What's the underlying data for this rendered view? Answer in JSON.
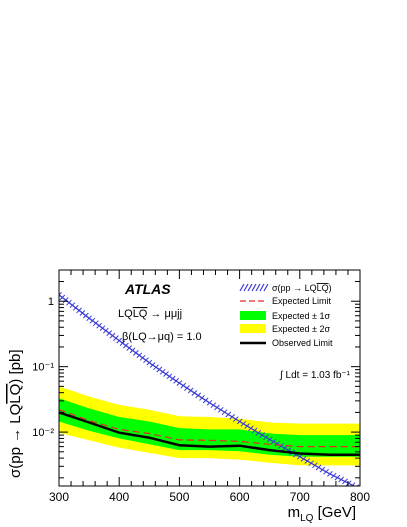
{
  "chart_data": {
    "type": "line",
    "title": "",
    "xlabel": "m_LQ [GeV]",
    "ylabel": "σ(pp → LQLQ) [pb]",
    "xlim": [
      300,
      800
    ],
    "ylim": [
      0.0015,
      3
    ],
    "yscale": "log",
    "x_ticks": [
      "300",
      "400",
      "500",
      "600",
      "700",
      "800"
    ],
    "y_ticks": [
      "1",
      "10⁻¹",
      "10⁻²"
    ],
    "annotations": {
      "experiment": "ATLAS",
      "process": "LQLQ → μμjj",
      "branching_ratio": "β(LQ→μq) = 1.0",
      "luminosity": "∫ Ldt = 1.03 fb⁻¹"
    },
    "legend": {
      "position": "top-right",
      "entries": [
        "σ(pp → LQLQ)",
        "Expected Limit",
        "Expected ± 1σ",
        "Expected ± 2σ",
        "Observed Limit"
      ]
    },
    "x": [
      300,
      350,
      400,
      450,
      500,
      550,
      600,
      650,
      700,
      750,
      800
    ],
    "series": [
      {
        "name": "σ(pp → LQLQ)",
        "style": "hatched-band",
        "color": "#3a3ad8",
        "values": [
          1.25,
          0.55,
          0.25,
          0.115,
          0.056,
          0.028,
          0.0145,
          0.0077,
          0.0042,
          0.0023,
          0.00135
        ]
      },
      {
        "name": "Expected Limit",
        "style": "dashed",
        "color": "#e8262a",
        "values": [
          0.022,
          0.015,
          0.011,
          0.0095,
          0.0076,
          0.0075,
          0.0072,
          0.0065,
          0.006,
          0.006,
          0.006
        ]
      },
      {
        "name": "Expected ± 1σ",
        "style": "band",
        "color": "#00ff00",
        "lower": [
          0.0145,
          0.0105,
          0.008,
          0.0065,
          0.0053,
          0.0053,
          0.0051,
          0.0045,
          0.0042,
          0.0042,
          0.0042
        ],
        "upper": [
          0.033,
          0.023,
          0.017,
          0.0145,
          0.0115,
          0.011,
          0.011,
          0.0095,
          0.009,
          0.009,
          0.009
        ]
      },
      {
        "name": "Expected ± 2σ",
        "style": "band",
        "color": "#ffff00",
        "lower": [
          0.0098,
          0.0075,
          0.0058,
          0.0048,
          0.004,
          0.004,
          0.0038,
          0.0034,
          0.0031,
          0.0031,
          0.0031
        ],
        "upper": [
          0.05,
          0.035,
          0.026,
          0.022,
          0.0175,
          0.017,
          0.016,
          0.014,
          0.0135,
          0.0135,
          0.0135
        ]
      },
      {
        "name": "Observed Limit",
        "style": "solid",
        "color": "#000000",
        "values": [
          0.02,
          0.014,
          0.0098,
          0.0082,
          0.0063,
          0.006,
          0.0062,
          0.0053,
          0.0047,
          0.0045,
          0.0045
        ]
      }
    ]
  }
}
